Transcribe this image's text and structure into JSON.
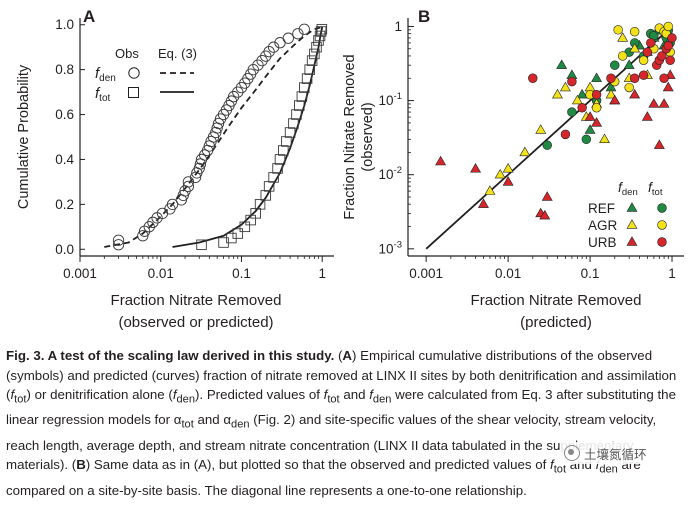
{
  "panel_a": {
    "label": "A",
    "xlabel_line1": "Fraction Nitrate Removed",
    "xlabel_line2": "(observed or predicted)",
    "ylabel": "Cumulative Probability",
    "x_ticks": [
      "0.001",
      "0.01",
      "0.1",
      "1"
    ],
    "y_ticks": [
      "0.0",
      "0.2",
      "0.4",
      "0.6",
      "0.8",
      "1.0"
    ],
    "legend": {
      "obs": "Obs",
      "eq": "Eq. (3)",
      "den_var": "f",
      "den_sub": "den",
      "tot_var": "f",
      "tot_sub": "tot"
    }
  },
  "panel_b": {
    "label": "B",
    "xlabel_line1": "Fraction Nitrate Removed",
    "xlabel_line2": "(predicted)",
    "ylabel_line1": "Fraction Nitrate Removed",
    "ylabel_line2": "(observed)",
    "x_ticks": [
      "0.001",
      "0.01",
      "0.1",
      "1"
    ],
    "y_ticks": [
      "10",
      "10",
      "10",
      "1"
    ],
    "y_tick_exps": [
      "-3",
      "-2",
      "-1",
      "0"
    ],
    "legend": {
      "den_var": "f",
      "den_sub": "den",
      "tot_var": "f",
      "tot_sub": "tot",
      "rows": [
        "REF",
        "AGR",
        "URB"
      ]
    }
  },
  "colors": {
    "REF": "#1e8a44",
    "AGR": "#f2e21a",
    "URB": "#d5262b",
    "ink": "#231f20"
  },
  "chart_data": [
    {
      "type": "line",
      "panel": "A",
      "xlabel": "Fraction Nitrate Removed (observed or predicted)",
      "ylabel": "Cumulative Probability",
      "x_scale": "log",
      "xlim": [
        0.001,
        1.4
      ],
      "ylim": [
        -0.03,
        1.03
      ],
      "series": [
        {
          "name": "fden Obs",
          "style": "open-circle",
          "points": [
            [
              0.003,
              0.02
            ],
            [
              0.003,
              0.04
            ],
            [
              0.006,
              0.06
            ],
            [
              0.0063,
              0.08
            ],
            [
              0.0072,
              0.1
            ],
            [
              0.008,
              0.12
            ],
            [
              0.009,
              0.14
            ],
            [
              0.0105,
              0.16
            ],
            [
              0.013,
              0.18
            ],
            [
              0.014,
              0.2
            ],
            [
              0.018,
              0.22
            ],
            [
              0.019,
              0.24
            ],
            [
              0.02,
              0.26
            ],
            [
              0.022,
              0.28
            ],
            [
              0.022,
              0.3
            ],
            [
              0.027,
              0.32
            ],
            [
              0.028,
              0.34
            ],
            [
              0.03,
              0.36
            ],
            [
              0.031,
              0.38
            ],
            [
              0.032,
              0.4
            ],
            [
              0.035,
              0.42
            ],
            [
              0.038,
              0.44
            ],
            [
              0.04,
              0.46
            ],
            [
              0.042,
              0.48
            ],
            [
              0.045,
              0.5
            ],
            [
              0.048,
              0.52
            ],
            [
              0.05,
              0.54
            ],
            [
              0.052,
              0.56
            ],
            [
              0.055,
              0.58
            ],
            [
              0.06,
              0.6
            ],
            [
              0.065,
              0.62
            ],
            [
              0.07,
              0.64
            ],
            [
              0.075,
              0.66
            ],
            [
              0.08,
              0.68
            ],
            [
              0.09,
              0.7
            ],
            [
              0.1,
              0.72
            ],
            [
              0.11,
              0.74
            ],
            [
              0.12,
              0.76
            ],
            [
              0.13,
              0.78
            ],
            [
              0.14,
              0.8
            ],
            [
              0.16,
              0.82
            ],
            [
              0.18,
              0.84
            ],
            [
              0.2,
              0.86
            ],
            [
              0.22,
              0.88
            ],
            [
              0.25,
              0.9
            ],
            [
              0.3,
              0.92
            ],
            [
              0.38,
              0.94
            ],
            [
              0.5,
              0.96
            ],
            [
              0.6,
              0.98
            ]
          ]
        },
        {
          "name": "ftot Obs",
          "style": "open-square",
          "points": [
            [
              0.032,
              0.02
            ],
            [
              0.06,
              0.03
            ],
            [
              0.075,
              0.05
            ],
            [
              0.09,
              0.07
            ],
            [
              0.11,
              0.1
            ],
            [
              0.13,
              0.13
            ],
            [
              0.15,
              0.16
            ],
            [
              0.17,
              0.2
            ],
            [
              0.2,
              0.24
            ],
            [
              0.22,
              0.28
            ],
            [
              0.25,
              0.32
            ],
            [
              0.28,
              0.36
            ],
            [
              0.3,
              0.4
            ],
            [
              0.33,
              0.44
            ],
            [
              0.36,
              0.48
            ],
            [
              0.4,
              0.52
            ],
            [
              0.44,
              0.56
            ],
            [
              0.48,
              0.6
            ],
            [
              0.52,
              0.64
            ],
            [
              0.56,
              0.68
            ],
            [
              0.6,
              0.72
            ],
            [
              0.65,
              0.76
            ],
            [
              0.7,
              0.8
            ],
            [
              0.75,
              0.84
            ],
            [
              0.8,
              0.87
            ],
            [
              0.85,
              0.9
            ],
            [
              0.9,
              0.93
            ],
            [
              0.94,
              0.95
            ],
            [
              0.97,
              0.97
            ],
            [
              0.99,
              0.98
            ]
          ]
        },
        {
          "name": "fden Eq. (3)",
          "style": "dashed",
          "points": [
            [
              0.002,
              0.01
            ],
            [
              0.004,
              0.03
            ],
            [
              0.006,
              0.07
            ],
            [
              0.009,
              0.13
            ],
            [
              0.014,
              0.2
            ],
            [
              0.022,
              0.29
            ],
            [
              0.034,
              0.38
            ],
            [
              0.05,
              0.47
            ],
            [
              0.07,
              0.55
            ],
            [
              0.1,
              0.63
            ],
            [
              0.15,
              0.71
            ],
            [
              0.2,
              0.77
            ],
            [
              0.3,
              0.85
            ],
            [
              0.45,
              0.91
            ],
            [
              0.6,
              0.95
            ],
            [
              0.8,
              0.98
            ],
            [
              1.0,
              0.99
            ]
          ]
        },
        {
          "name": "ftot Eq. (3)",
          "style": "solid",
          "points": [
            [
              0.014,
              0.01
            ],
            [
              0.03,
              0.03
            ],
            [
              0.06,
              0.06
            ],
            [
              0.1,
              0.11
            ],
            [
              0.15,
              0.17
            ],
            [
              0.2,
              0.23
            ],
            [
              0.3,
              0.34
            ],
            [
              0.4,
              0.45
            ],
            [
              0.5,
              0.55
            ],
            [
              0.6,
              0.64
            ],
            [
              0.7,
              0.73
            ],
            [
              0.8,
              0.82
            ],
            [
              0.9,
              0.9
            ],
            [
              0.95,
              0.95
            ],
            [
              1.0,
              0.99
            ]
          ]
        }
      ]
    },
    {
      "type": "scatter",
      "panel": "B",
      "xlabel": "Fraction Nitrate Removed (predicted)",
      "ylabel": "Fraction Nitrate Removed (observed)",
      "x_scale": "log",
      "y_scale": "log",
      "xlim": [
        0.0006,
        1.4
      ],
      "ylim": [
        0.0008,
        1.3
      ],
      "reference_line": [
        [
          0.001,
          0.001
        ],
        [
          1.0,
          1.0
        ]
      ],
      "series": [
        {
          "name": "REF",
          "variable": "fden",
          "marker": "triangle",
          "color": "#1e8a44",
          "points": [
            [
              0.045,
              0.3
            ],
            [
              0.06,
              0.22
            ],
            [
              0.08,
              0.12
            ],
            [
              0.1,
              0.04
            ],
            [
              0.12,
              0.2
            ],
            [
              0.18,
              0.15
            ],
            [
              0.2,
              0.1
            ],
            [
              0.3,
              0.3
            ],
            [
              0.4,
              0.55
            ],
            [
              0.5,
              0.45
            ],
            [
              0.6,
              0.7
            ],
            [
              0.8,
              0.55
            ]
          ]
        },
        {
          "name": "REF",
          "variable": "ftot",
          "marker": "circle",
          "color": "#1e8a44",
          "points": [
            [
              0.03,
              0.025
            ],
            [
              0.06,
              0.07
            ],
            [
              0.09,
              0.03
            ],
            [
              0.12,
              0.1
            ],
            [
              0.2,
              0.3
            ],
            [
              0.3,
              0.45
            ],
            [
              0.35,
              0.6
            ],
            [
              0.45,
              0.4
            ],
            [
              0.55,
              0.8
            ],
            [
              0.6,
              0.75
            ],
            [
              0.7,
              0.9
            ],
            [
              0.85,
              0.7
            ],
            [
              0.9,
              0.88
            ],
            [
              0.95,
              0.6
            ]
          ]
        },
        {
          "name": "AGR",
          "variable": "fden",
          "marker": "triangle",
          "color": "#f2e21a",
          "points": [
            [
              0.006,
              0.006
            ],
            [
              0.008,
              0.01
            ],
            [
              0.01,
              0.012
            ],
            [
              0.016,
              0.02
            ],
            [
              0.025,
              0.04
            ],
            [
              0.04,
              0.12
            ],
            [
              0.05,
              0.15
            ],
            [
              0.07,
              0.1
            ],
            [
              0.09,
              0.06
            ],
            [
              0.1,
              0.15
            ],
            [
              0.12,
              0.09
            ],
            [
              0.15,
              0.03
            ],
            [
              0.18,
              0.12
            ],
            [
              0.25,
              0.7
            ],
            [
              0.3,
              0.2
            ],
            [
              0.35,
              0.5
            ],
            [
              0.5,
              0.22
            ]
          ]
        },
        {
          "name": "AGR",
          "variable": "ftot",
          "marker": "circle",
          "color": "#f2e21a",
          "points": [
            [
              0.1,
              0.12
            ],
            [
              0.12,
              0.08
            ],
            [
              0.2,
              0.18
            ],
            [
              0.22,
              0.9
            ],
            [
              0.25,
              0.4
            ],
            [
              0.3,
              0.15
            ],
            [
              0.35,
              0.85
            ],
            [
              0.45,
              0.35
            ],
            [
              0.6,
              0.5
            ],
            [
              0.7,
              0.95
            ],
            [
              0.8,
              0.85
            ],
            [
              0.85,
              0.8
            ],
            [
              0.9,
              1.0
            ],
            [
              0.95,
              0.45
            ]
          ]
        },
        {
          "name": "URB",
          "variable": "fden",
          "marker": "triangle",
          "color": "#d5262b",
          "points": [
            [
              0.0015,
              0.015
            ],
            [
              0.004,
              0.012
            ],
            [
              0.005,
              0.004
            ],
            [
              0.01,
              0.008
            ],
            [
              0.025,
              0.003
            ],
            [
              0.028,
              0.0028
            ],
            [
              0.03,
              0.005
            ],
            [
              0.1,
              0.06
            ],
            [
              0.12,
              0.05
            ],
            [
              0.2,
              0.1
            ],
            [
              0.35,
              0.12
            ],
            [
              0.5,
              0.06
            ],
            [
              0.6,
              0.09
            ],
            [
              0.7,
              0.025
            ],
            [
              0.8,
              0.09
            ],
            [
              0.9,
              0.15
            ],
            [
              0.95,
              0.22
            ]
          ]
        },
        {
          "name": "URB",
          "variable": "ftot",
          "marker": "circle",
          "color": "#d5262b",
          "points": [
            [
              0.02,
              0.2
            ],
            [
              0.05,
              0.035
            ],
            [
              0.06,
              0.18
            ],
            [
              0.08,
              0.08
            ],
            [
              0.12,
              0.12
            ],
            [
              0.18,
              0.2
            ],
            [
              0.35,
              0.2
            ],
            [
              0.45,
              0.22
            ],
            [
              0.5,
              0.45
            ],
            [
              0.55,
              0.6
            ],
            [
              0.65,
              0.3
            ],
            [
              0.7,
              0.35
            ],
            [
              0.75,
              0.4
            ],
            [
              0.8,
              0.2
            ],
            [
              0.85,
              0.5
            ],
            [
              0.9,
              0.55
            ],
            [
              0.95,
              0.35
            ],
            [
              1.0,
              0.7
            ]
          ]
        }
      ]
    }
  ],
  "caption": {
    "title": "Fig. 3. A test of the scaling law derived in this study.",
    "label_a": "A",
    "label_b": "B",
    "seg1": "Empirical cumulative distributions of the observed (symbols) and predicted (curves) fraction of nitrate removed at LINX II sites by both denitrification and assimilation (",
    "ftot": "f",
    "tot": "tot",
    "seg2": ") or denitrification alone (",
    "fden": "f",
    "den": "den",
    "seg3": "). Predicted values of ",
    "seg4": " and ",
    "seg5": " were calculated from Eq. 3 after substituting the linear regression models for α",
    "seg6": " and α",
    "seg7": " (Fig. 2) and site-specific values of the shear velocity, stream velocity, reach length, average depth, and stream nitrate concentration (LINX II data tabulated in the supplementary materials). (",
    "seg8": ") Same data as in (A), but plotted so that the observed and predicted values of ",
    "seg9": " and ",
    "seg10": " are compared on a site-by-site basis. The diagonal line represents a one-to-one relationship."
  },
  "watermark": {
    "text": "土壤氮循环"
  }
}
